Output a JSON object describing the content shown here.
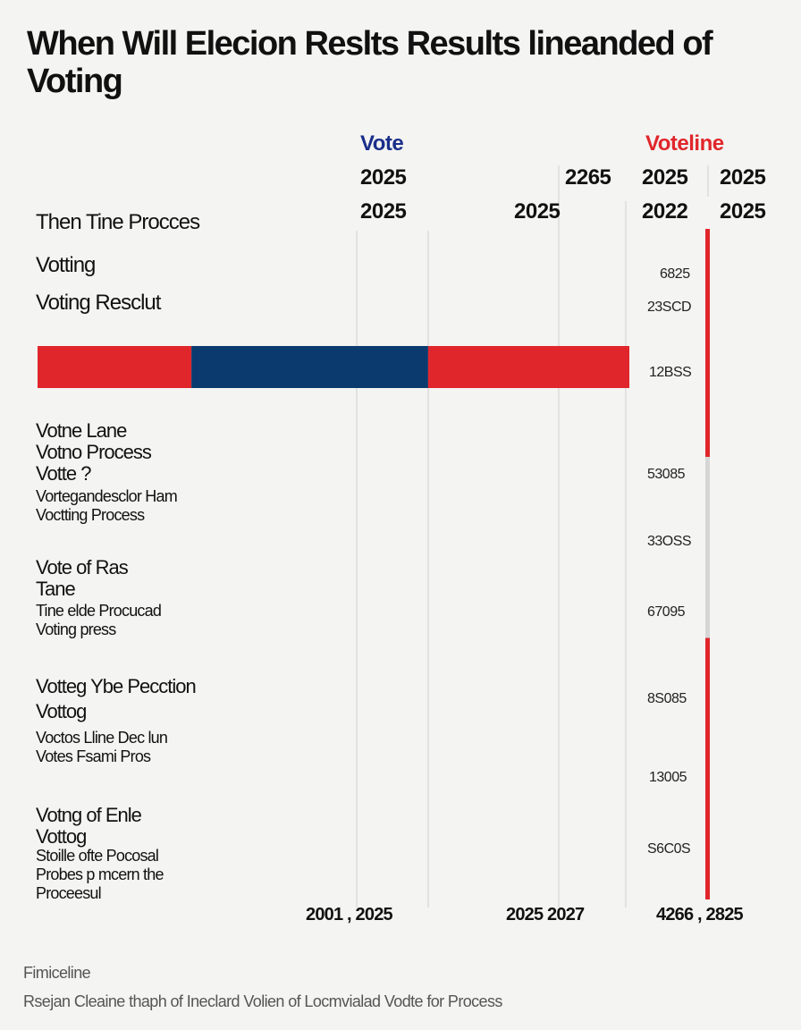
{
  "title": "When Will  Elecion Reslts Results lineanded of Voting",
  "headers": {
    "series_left": "Vote",
    "series_right": "Voteline",
    "row1": [
      "2025",
      "2265",
      "2025",
      "2025"
    ],
    "row2": [
      "2025",
      "2025",
      "2022",
      "2025"
    ]
  },
  "labels": {
    "l1": "Then Tine Procces",
    "l2": "Votting",
    "l3": "Voting Resclut",
    "g1_title": [
      "Votne Lane",
      "Votno Process",
      "Votte ?"
    ],
    "g1_sub": [
      "Vortegandesclor Ham",
      "Voctting Process"
    ],
    "g2_title": [
      "Vote of Ras",
      "Tane"
    ],
    "g2_sub": [
      "Tine elde Procucad",
      "Voting press"
    ],
    "g3_title": [
      "Votteg Ybe Pecction",
      "Vottog"
    ],
    "g3_sub": [
      "Voctos Lline Dec lun",
      "Votes Fsami Pros"
    ],
    "g4_title": [
      "Votng of Enle",
      "Vottog"
    ],
    "g4_sub": [
      "Stoille ofte Pocosal",
      "Probes p mcern the",
      "Proceesul"
    ]
  },
  "right_ticks": [
    "6825",
    "23SCD",
    "12BSS",
    "53085",
    "33OSS",
    "67095",
    "8S085",
    "13005",
    "S6C0S"
  ],
  "bottom_labels": [
    "2001 , 2025",
    "2025 2027",
    "4266 , 2825"
  ],
  "footer": {
    "line1": "Fimiceline",
    "line2": "Rsejan Cleaine thaph of Ineclard Volien of Locmvialad Vodte for Process"
  },
  "colors": {
    "red": "#e0262b",
    "navy": "#0a3a6e",
    "accent_blue": "#1a2f8a",
    "grid": "#cfcfcf",
    "gray_segment": "#d6d6d6"
  },
  "chart_data": {
    "type": "bar",
    "orientation": "horizontal",
    "title": "When Will  Elecion Reslts Results lineanded of Voting",
    "bar": {
      "segments": [
        {
          "color": "#e0262b",
          "start": 0,
          "end": 0.26
        },
        {
          "color": "#0a3a6e",
          "start": 0.26,
          "end": 0.66
        },
        {
          "color": "#e0262b",
          "start": 0.66,
          "end": 1.0
        }
      ]
    },
    "vertical_timeline": {
      "segments": [
        {
          "color": "#e0262b",
          "from": 0,
          "to": 0.34
        },
        {
          "color": "#d6d6d6",
          "from": 0.34,
          "to": 0.61
        },
        {
          "color": "#e0262b",
          "from": 0.61,
          "to": 1.0
        }
      ]
    }
  }
}
